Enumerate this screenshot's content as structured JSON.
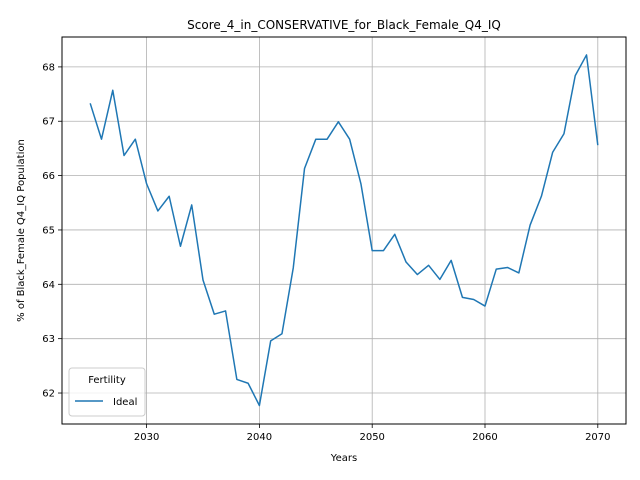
{
  "chart_data": {
    "type": "line",
    "title": "Score_4_in_CONSERVATIVE_for_Black_Female_Q4_IQ",
    "xlabel": "Years",
    "ylabel": "% of Black_Female Q4_IQ Population",
    "xlim": [
      2022.5,
      2072.5
    ],
    "ylim": [
      61.43,
      68.55
    ],
    "x_ticks": [
      2030,
      2040,
      2050,
      2060,
      2070
    ],
    "y_ticks": [
      62,
      63,
      64,
      65,
      66,
      67,
      68
    ],
    "grid": true,
    "legend": {
      "title": "Fertility",
      "placement": "lower-left"
    },
    "series": [
      {
        "name": "Ideal",
        "color": "#1f77b4",
        "x": [
          2025,
          2026,
          2027,
          2028,
          2029,
          2030,
          2031,
          2032,
          2033,
          2034,
          2035,
          2036,
          2037,
          2038,
          2039,
          2040,
          2041,
          2042,
          2043,
          2044,
          2045,
          2046,
          2047,
          2048,
          2049,
          2050,
          2051,
          2052,
          2053,
          2054,
          2055,
          2056,
          2057,
          2058,
          2059,
          2060,
          2061,
          2062,
          2063,
          2064,
          2065,
          2066,
          2067,
          2068,
          2069,
          2070
        ],
        "values": [
          67.33,
          66.67,
          67.57,
          66.37,
          66.67,
          65.85,
          65.35,
          65.62,
          64.7,
          65.46,
          64.08,
          63.45,
          63.51,
          62.25,
          62.18,
          61.77,
          62.96,
          63.09,
          64.3,
          66.13,
          66.67,
          66.67,
          66.99,
          66.67,
          65.85,
          64.62,
          64.62,
          64.92,
          64.41,
          64.18,
          64.35,
          64.09,
          64.44,
          63.76,
          63.72,
          63.6,
          64.28,
          64.31,
          64.21,
          65.09,
          65.62,
          66.43,
          66.77,
          67.84,
          68.22,
          66.56
        ]
      }
    ]
  }
}
